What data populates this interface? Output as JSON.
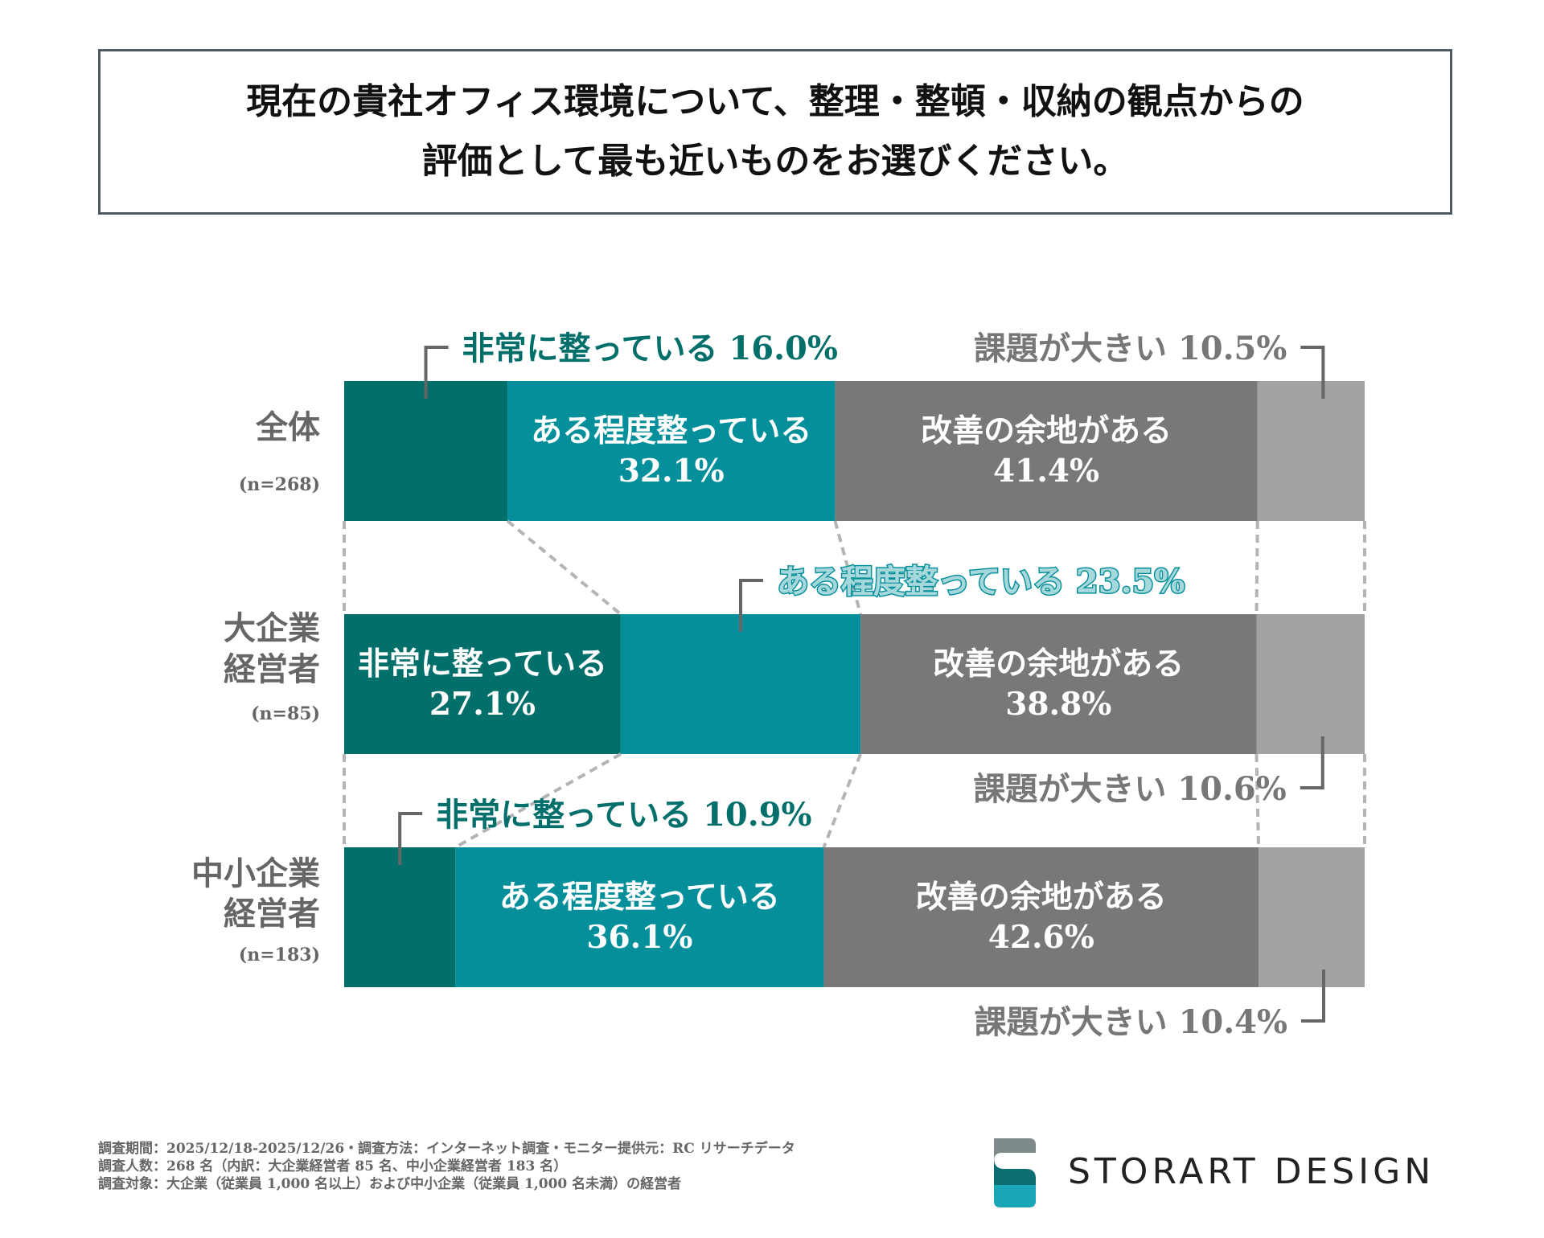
{
  "title": {
    "line1": "現在の貴社オフィス環境について、整理・整頓・収納の観点からの",
    "line2": "評価として最も近いものをお選びください。"
  },
  "colors": {
    "very_good": "#036f6b",
    "fairly_good": "#048f9a",
    "room": "#787878",
    "big_issues": "#a3a3a3",
    "connector": "#b4b4b4"
  },
  "chart_data": {
    "type": "bar",
    "orientation": "horizontal",
    "stacked": true,
    "percent": true,
    "categories": [
      {
        "name": "全体",
        "n": "(n=268)"
      },
      {
        "name": "大企業\n経営者",
        "n": "(n=85)"
      },
      {
        "name": "中小企業\n経営者",
        "n": "(n=183)"
      }
    ],
    "series": [
      {
        "name": "非常に整っている",
        "values": [
          16.0,
          27.1,
          10.9
        ]
      },
      {
        "name": "ある程度整っている",
        "values": [
          32.1,
          23.5,
          36.1
        ]
      },
      {
        "name": "改善の余地がある",
        "values": [
          41.4,
          38.8,
          42.6
        ]
      },
      {
        "name": "課題が大きい",
        "values": [
          10.5,
          10.6,
          10.4
        ]
      }
    ],
    "labels": [
      {
        "row": 0,
        "series": 0,
        "text": "非常に整っている 16.0%",
        "placement": "outside"
      },
      {
        "row": 0,
        "series": 1,
        "line1": "ある程度整っている",
        "line2": "32.1%",
        "placement": "inside"
      },
      {
        "row": 0,
        "series": 2,
        "line1": "改善の余地がある",
        "line2": "41.4%",
        "placement": "inside"
      },
      {
        "row": 0,
        "series": 3,
        "text": "課題が大きい  10.5%",
        "placement": "outside"
      },
      {
        "row": 1,
        "series": 0,
        "line1": "非常に整っている",
        "line2": "27.1%",
        "placement": "inside"
      },
      {
        "row": 1,
        "series": 1,
        "text": "ある程度整っている 23.5%",
        "placement": "outside"
      },
      {
        "row": 1,
        "series": 2,
        "line1": "改善の余地がある",
        "line2": "38.8%",
        "placement": "inside"
      },
      {
        "row": 1,
        "series": 3,
        "text": "課題が大きい  10.6%",
        "placement": "outside"
      },
      {
        "row": 2,
        "series": 0,
        "text": "非常に整っている 10.9%",
        "placement": "outside"
      },
      {
        "row": 2,
        "series": 1,
        "line1": "ある程度整っている",
        "line2": "36.1%",
        "placement": "inside"
      },
      {
        "row": 2,
        "series": 2,
        "line1": "改善の余地がある",
        "line2": "42.6%",
        "placement": "inside"
      },
      {
        "row": 2,
        "series": 3,
        "text": "課題が大きい  10.4%",
        "placement": "outside"
      }
    ]
  },
  "footer": {
    "line1": "調査期間：2025/12/18-2025/12/26・調査方法：インターネット調査・モニター提供元：RC リサーチデータ",
    "line2": "調査人数：268 名（内訳：大企業経営者 85 名、中小企業経営者 183 名）",
    "line3": "調査対象：大企業（従業員 1,000 名以上）および中小企業（従業員 1,000 名未満）の経営者"
  },
  "brand": {
    "name": "STORART DESIGN",
    "logo_icon": "s-logo-icon"
  }
}
